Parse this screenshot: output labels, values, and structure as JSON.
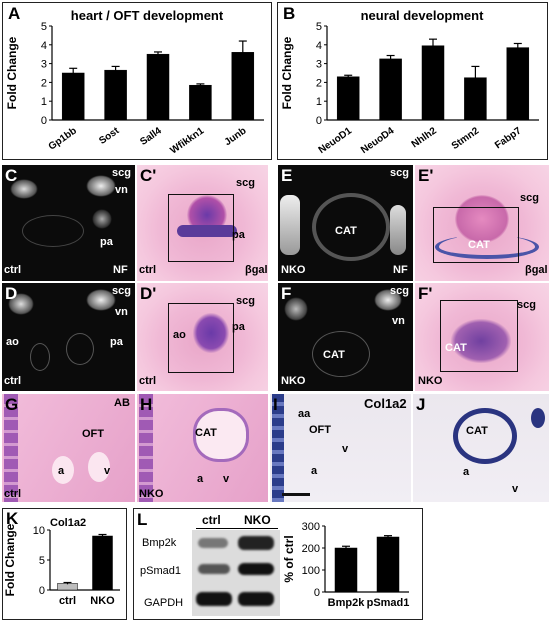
{
  "panels": {
    "A": {
      "letter": "A",
      "title": "heart / OFT development"
    },
    "B": {
      "letter": "B",
      "title": "neural development"
    },
    "C": {
      "letter": "C",
      "tl": [
        "scg",
        "vn",
        "pa"
      ],
      "ctrl": "ctrl",
      "corner": "NF"
    },
    "C2": {
      "letter": "C'",
      "tl": [
        "scg",
        "pa"
      ],
      "ctrl": "ctrl",
      "corner": "βgal"
    },
    "D": {
      "letter": "D",
      "tl": [
        "scg",
        "vn",
        "ao",
        "pa"
      ],
      "ctrl": "ctrl"
    },
    "D2": {
      "letter": "D'",
      "tl": [
        "scg",
        "ao",
        "pa"
      ],
      "ctrl": "ctrl"
    },
    "E": {
      "letter": "E",
      "tl": [
        "scg",
        "CAT"
      ],
      "ctrl": "NKO",
      "corner": "NF"
    },
    "E2": {
      "letter": "E'",
      "tl": [
        "scg",
        "CAT"
      ],
      "corner": "βgal"
    },
    "F": {
      "letter": "F",
      "tl": [
        "scg",
        "vn",
        "CAT"
      ],
      "ctrl": "NKO"
    },
    "F2": {
      "letter": "F'",
      "tl": [
        "scg",
        "CAT"
      ],
      "ctrl": "NKO"
    },
    "G": {
      "letter": "G",
      "tl": [
        "OFT",
        "a",
        "v"
      ],
      "ctrl": "ctrl",
      "corner": "AB"
    },
    "H": {
      "letter": "H",
      "tl": [
        "CAT",
        "a",
        "v"
      ],
      "ctrl": "NKO"
    },
    "I": {
      "letter": "I",
      "tl": [
        "aa",
        "OFT",
        "v",
        "a"
      ],
      "corner": "Col1a2"
    },
    "J": {
      "letter": "J",
      "tl": [
        "CAT",
        "a",
        "v"
      ]
    },
    "K": {
      "letter": "K",
      "title": "Col1a2"
    },
    "L": {
      "letter": "L",
      "blot_cols": [
        "ctrl",
        "NKO"
      ],
      "blot_rows": [
        "Bmp2k",
        "pSmad1",
        "GAPDH"
      ]
    }
  },
  "chart_data": [
    {
      "id": "A",
      "type": "bar",
      "title": "heart / OFT development",
      "ylabel": "Fold Change",
      "ylim": [
        0,
        5
      ],
      "yticks": [
        0,
        1,
        2,
        3,
        4,
        5
      ],
      "categories": [
        "Gp1bb",
        "Sost",
        "Sall4",
        "Wfikkn1",
        "Junb"
      ],
      "values": [
        2.5,
        2.65,
        3.5,
        1.85,
        3.6
      ],
      "errors": [
        0.25,
        0.2,
        0.12,
        0.07,
        0.6
      ],
      "colors": [
        "#000",
        "#000",
        "#000",
        "#000",
        "#000"
      ]
    },
    {
      "id": "B",
      "type": "bar",
      "title": "neural development",
      "ylabel": "Fold Change",
      "ylim": [
        0,
        5
      ],
      "yticks": [
        0,
        1,
        2,
        3,
        4,
        5
      ],
      "categories": [
        "NeuoD1",
        "NeuoD4",
        "Nhlh2",
        "Stmn2",
        "Fabp7"
      ],
      "values": [
        2.3,
        3.25,
        3.95,
        2.25,
        3.85
      ],
      "errors": [
        0.08,
        0.18,
        0.35,
        0.6,
        0.22
      ],
      "colors": [
        "#000",
        "#000",
        "#000",
        "#000",
        "#000"
      ]
    },
    {
      "id": "K",
      "type": "bar",
      "title": "Col1a2",
      "ylabel": "Fold Change",
      "ylim": [
        0,
        10
      ],
      "yticks": [
        0,
        5,
        10
      ],
      "categories": [
        "ctrl",
        "NKO"
      ],
      "values": [
        1.1,
        9.0
      ],
      "errors": [
        0.15,
        0.25
      ],
      "colors": [
        "#bdbdbd",
        "#000"
      ]
    },
    {
      "id": "L",
      "type": "bar",
      "title": "",
      "ylabel": "% of ctrl",
      "ylim": [
        0,
        300
      ],
      "yticks": [
        0,
        100,
        200,
        300
      ],
      "categories": [
        "Bmp2k",
        "pSmad1"
      ],
      "values": [
        200,
        250
      ],
      "errors": [
        8,
        6
      ],
      "colors": [
        "#000",
        "#000"
      ]
    }
  ]
}
